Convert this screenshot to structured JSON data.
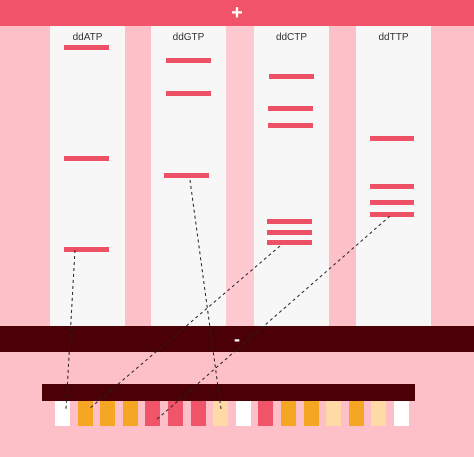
{
  "electrodes": {
    "positive": "+",
    "negative": "-"
  },
  "lanes": [
    {
      "label": "ddATP"
    },
    {
      "label": "ddGTP"
    },
    {
      "label": "ddCTP"
    },
    {
      "label": "ddTTP"
    }
  ],
  "colors": {
    "background": "#fdbfc8",
    "lane": "#f7f7f7",
    "band": "#ee5165",
    "positive_bar": "#f0536a",
    "negative_bar": "#4b0008",
    "sequence_bar": "#4b0008"
  },
  "sequence": {
    "cell_colors": [
      "#ffffff",
      "#f5a623",
      "#f5a623",
      "#f5a623",
      "#f05468",
      "#f05468",
      "#f05468",
      "#ffd9a6",
      "#ffffff",
      "#f05468",
      "#f5a623",
      "#f5a623",
      "#ffd9a6",
      "#f5a623",
      "#ffd9a6",
      "#ffffff"
    ]
  }
}
